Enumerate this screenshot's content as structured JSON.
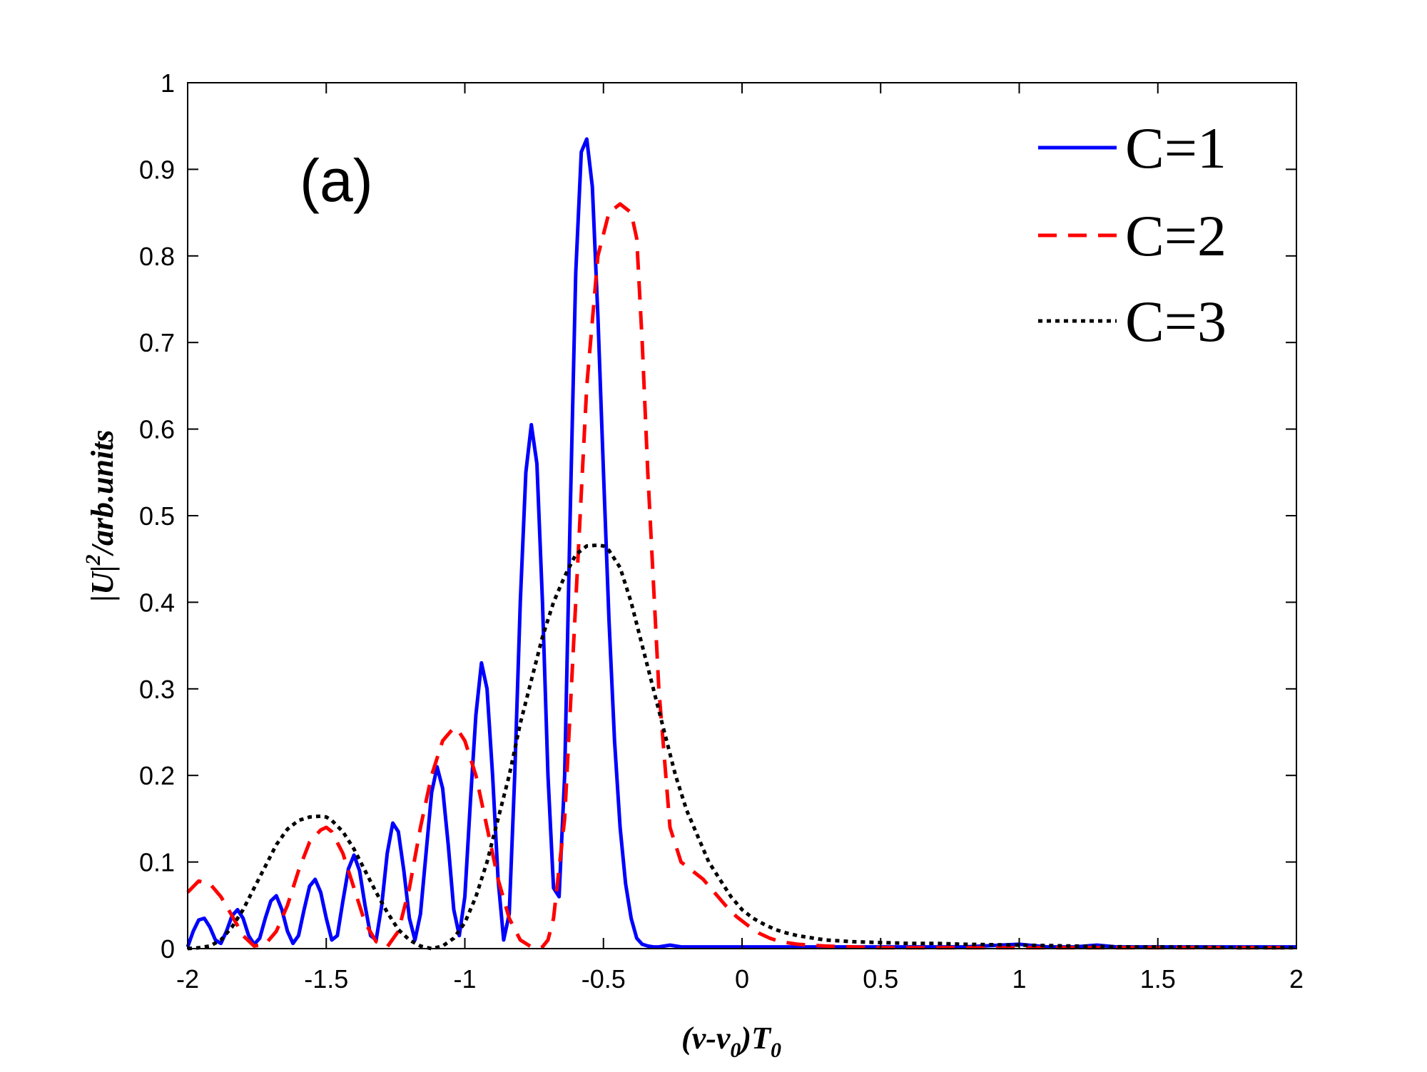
{
  "chart_data": {
    "type": "line",
    "panel_label": "(a)",
    "xlabel": {
      "open": "(",
      "v1": "v",
      "dash": "-",
      "v2": "v",
      "sub0": "0",
      "close": ")",
      "T": "T",
      "subT": "0"
    },
    "ylabel": {
      "bar1": "|",
      "U": "U",
      "bar2": "|",
      "sup": "2",
      "rest": "/arb.units"
    },
    "xlim": [
      -2,
      2
    ],
    "ylim": [
      0,
      1
    ],
    "xticks": [
      -2,
      -1.5,
      -1,
      -0.5,
      0,
      0.5,
      1,
      1.5,
      2
    ],
    "xtick_labels": [
      "-2",
      "-1.5",
      "-1",
      "-0.5",
      "0",
      "0.5",
      "1",
      "1.5",
      "2"
    ],
    "yticks": [
      0,
      0.1,
      0.2,
      0.3,
      0.4,
      0.5,
      0.6,
      0.7,
      0.8,
      0.9,
      1
    ],
    "ytick_labels": [
      "0",
      "0.1",
      "0.2",
      "0.3",
      "0.4",
      "0.5",
      "0.6",
      "0.7",
      "0.8",
      "0.9",
      "1"
    ],
    "legend_position": "top-right",
    "series": [
      {
        "name": "C=1",
        "color": "#0000ff",
        "style": "solid",
        "x": [
          -2.0,
          -1.98,
          -1.96,
          -1.94,
          -1.92,
          -1.9,
          -1.88,
          -1.86,
          -1.84,
          -1.82,
          -1.8,
          -1.78,
          -1.76,
          -1.74,
          -1.72,
          -1.7,
          -1.68,
          -1.66,
          -1.64,
          -1.62,
          -1.6,
          -1.58,
          -1.56,
          -1.54,
          -1.52,
          -1.5,
          -1.48,
          -1.46,
          -1.44,
          -1.42,
          -1.4,
          -1.38,
          -1.36,
          -1.34,
          -1.32,
          -1.3,
          -1.28,
          -1.26,
          -1.24,
          -1.22,
          -1.2,
          -1.18,
          -1.16,
          -1.14,
          -1.12,
          -1.1,
          -1.08,
          -1.06,
          -1.04,
          -1.02,
          -1.0,
          -0.98,
          -0.96,
          -0.94,
          -0.92,
          -0.9,
          -0.88,
          -0.86,
          -0.84,
          -0.82,
          -0.8,
          -0.78,
          -0.76,
          -0.74,
          -0.72,
          -0.7,
          -0.68,
          -0.66,
          -0.64,
          -0.62,
          -0.6,
          -0.58,
          -0.56,
          -0.54,
          -0.52,
          -0.5,
          -0.48,
          -0.46,
          -0.44,
          -0.42,
          -0.4,
          -0.38,
          -0.36,
          -0.34,
          -0.32,
          -0.3,
          -0.28,
          -0.26,
          -0.24,
          -0.22,
          -0.2,
          -0.18,
          -0.16,
          -0.14,
          -0.12,
          -0.1,
          -0.08,
          -0.06,
          -0.04,
          -0.02,
          0.0,
          0.02,
          0.04,
          0.06,
          0.08,
          0.1,
          0.12,
          0.14,
          0.16,
          0.2,
          0.3,
          0.4,
          0.6,
          0.8,
          1.0,
          1.1,
          1.2,
          1.28,
          1.35,
          1.5,
          1.7,
          2.0
        ],
        "y": [
          0.002,
          0.02,
          0.033,
          0.035,
          0.025,
          0.01,
          0.006,
          0.02,
          0.038,
          0.045,
          0.035,
          0.015,
          0.005,
          0.012,
          0.035,
          0.055,
          0.061,
          0.045,
          0.02,
          0.006,
          0.015,
          0.045,
          0.072,
          0.08,
          0.065,
          0.035,
          0.01,
          0.015,
          0.055,
          0.092,
          0.108,
          0.09,
          0.05,
          0.015,
          0.01,
          0.05,
          0.11,
          0.145,
          0.135,
          0.09,
          0.035,
          0.01,
          0.04,
          0.11,
          0.18,
          0.21,
          0.185,
          0.12,
          0.045,
          0.015,
          0.06,
          0.17,
          0.27,
          0.33,
          0.3,
          0.2,
          0.08,
          0.01,
          0.04,
          0.2,
          0.4,
          0.55,
          0.605,
          0.56,
          0.4,
          0.2,
          0.07,
          0.06,
          0.2,
          0.5,
          0.78,
          0.92,
          0.935,
          0.88,
          0.73,
          0.55,
          0.38,
          0.24,
          0.14,
          0.075,
          0.035,
          0.012,
          0.005,
          0.003,
          0.002,
          0.002,
          0.003,
          0.004,
          0.003,
          0.002,
          0.002,
          0.002,
          0.002,
          0.002,
          0.002,
          0.002,
          0.002,
          0.002,
          0.002,
          0.002,
          0.002,
          0.002,
          0.002,
          0.002,
          0.002,
          0.002,
          0.002,
          0.002,
          0.002,
          0.002,
          0.002,
          0.002,
          0.002,
          0.002,
          0.005,
          0.002,
          0.002,
          0.004,
          0.002,
          0.002,
          0.002,
          0.002
        ]
      },
      {
        "name": "C=2",
        "color": "#ff0000",
        "style": "dashed",
        "x": [
          -2.0,
          -1.96,
          -1.92,
          -1.88,
          -1.84,
          -1.8,
          -1.76,
          -1.72,
          -1.68,
          -1.64,
          -1.6,
          -1.56,
          -1.52,
          -1.5,
          -1.48,
          -1.44,
          -1.4,
          -1.36,
          -1.32,
          -1.28,
          -1.24,
          -1.2,
          -1.16,
          -1.12,
          -1.08,
          -1.04,
          -1.02,
          -1.0,
          -0.96,
          -0.92,
          -0.88,
          -0.84,
          -0.8,
          -0.76,
          -0.74,
          -0.72,
          -0.7,
          -0.68,
          -0.64,
          -0.6,
          -0.56,
          -0.52,
          -0.48,
          -0.44,
          -0.4,
          -0.38,
          -0.36,
          -0.34,
          -0.3,
          -0.26,
          -0.22,
          -0.18,
          -0.14,
          -0.1,
          -0.06,
          -0.02,
          0.02,
          0.06,
          0.1,
          0.14,
          0.2,
          0.3,
          0.4,
          0.5,
          0.6,
          0.8,
          1.0,
          1.2,
          1.4,
          1.6,
          1.8,
          2.0
        ],
        "y": [
          0.065,
          0.078,
          0.075,
          0.06,
          0.038,
          0.015,
          0.003,
          0.005,
          0.02,
          0.05,
          0.09,
          0.123,
          0.137,
          0.14,
          0.135,
          0.11,
          0.07,
          0.03,
          0.008,
          0.002,
          0.02,
          0.07,
          0.14,
          0.2,
          0.24,
          0.255,
          0.25,
          0.24,
          0.2,
          0.14,
          0.08,
          0.035,
          0.01,
          0.002,
          0.0,
          0.002,
          0.01,
          0.035,
          0.15,
          0.4,
          0.65,
          0.8,
          0.85,
          0.86,
          0.85,
          0.82,
          0.7,
          0.55,
          0.3,
          0.14,
          0.1,
          0.09,
          0.08,
          0.065,
          0.05,
          0.037,
          0.027,
          0.018,
          0.012,
          0.008,
          0.005,
          0.003,
          0.002,
          0.001,
          0.001,
          0.001,
          0.001,
          0.001,
          0.001,
          0.001,
          0.001,
          0.001
        ]
      },
      {
        "name": "C=3",
        "color": "#000000",
        "style": "dotted",
        "x": [
          -2.0,
          -1.96,
          -1.92,
          -1.88,
          -1.84,
          -1.8,
          -1.76,
          -1.72,
          -1.68,
          -1.64,
          -1.6,
          -1.56,
          -1.52,
          -1.5,
          -1.48,
          -1.44,
          -1.4,
          -1.36,
          -1.32,
          -1.28,
          -1.24,
          -1.2,
          -1.16,
          -1.12,
          -1.08,
          -1.04,
          -1.0,
          -0.96,
          -0.92,
          -0.88,
          -0.84,
          -0.8,
          -0.76,
          -0.72,
          -0.68,
          -0.64,
          -0.6,
          -0.56,
          -0.52,
          -0.5,
          -0.48,
          -0.44,
          -0.4,
          -0.36,
          -0.32,
          -0.28,
          -0.24,
          -0.2,
          -0.16,
          -0.12,
          -0.08,
          -0.04,
          0.0,
          0.04,
          0.08,
          0.12,
          0.16,
          0.2,
          0.3,
          0.4,
          0.5,
          0.6,
          0.7,
          0.8,
          1.0,
          1.2,
          1.4,
          1.6,
          1.8,
          2.0
        ],
        "y": [
          0.0,
          0.001,
          0.003,
          0.01,
          0.025,
          0.045,
          0.07,
          0.095,
          0.12,
          0.138,
          0.148,
          0.152,
          0.153,
          0.152,
          0.148,
          0.135,
          0.115,
          0.09,
          0.065,
          0.042,
          0.022,
          0.01,
          0.003,
          0.0,
          0.003,
          0.012,
          0.03,
          0.06,
          0.1,
          0.15,
          0.2,
          0.26,
          0.31,
          0.36,
          0.4,
          0.43,
          0.455,
          0.465,
          0.466,
          0.465,
          0.46,
          0.44,
          0.4,
          0.35,
          0.3,
          0.25,
          0.2,
          0.16,
          0.13,
          0.1,
          0.08,
          0.06,
          0.045,
          0.035,
          0.028,
          0.022,
          0.018,
          0.015,
          0.01,
          0.008,
          0.007,
          0.006,
          0.006,
          0.005,
          0.004,
          0.003,
          0.002,
          0.002,
          0.001,
          0.001
        ]
      }
    ]
  }
}
